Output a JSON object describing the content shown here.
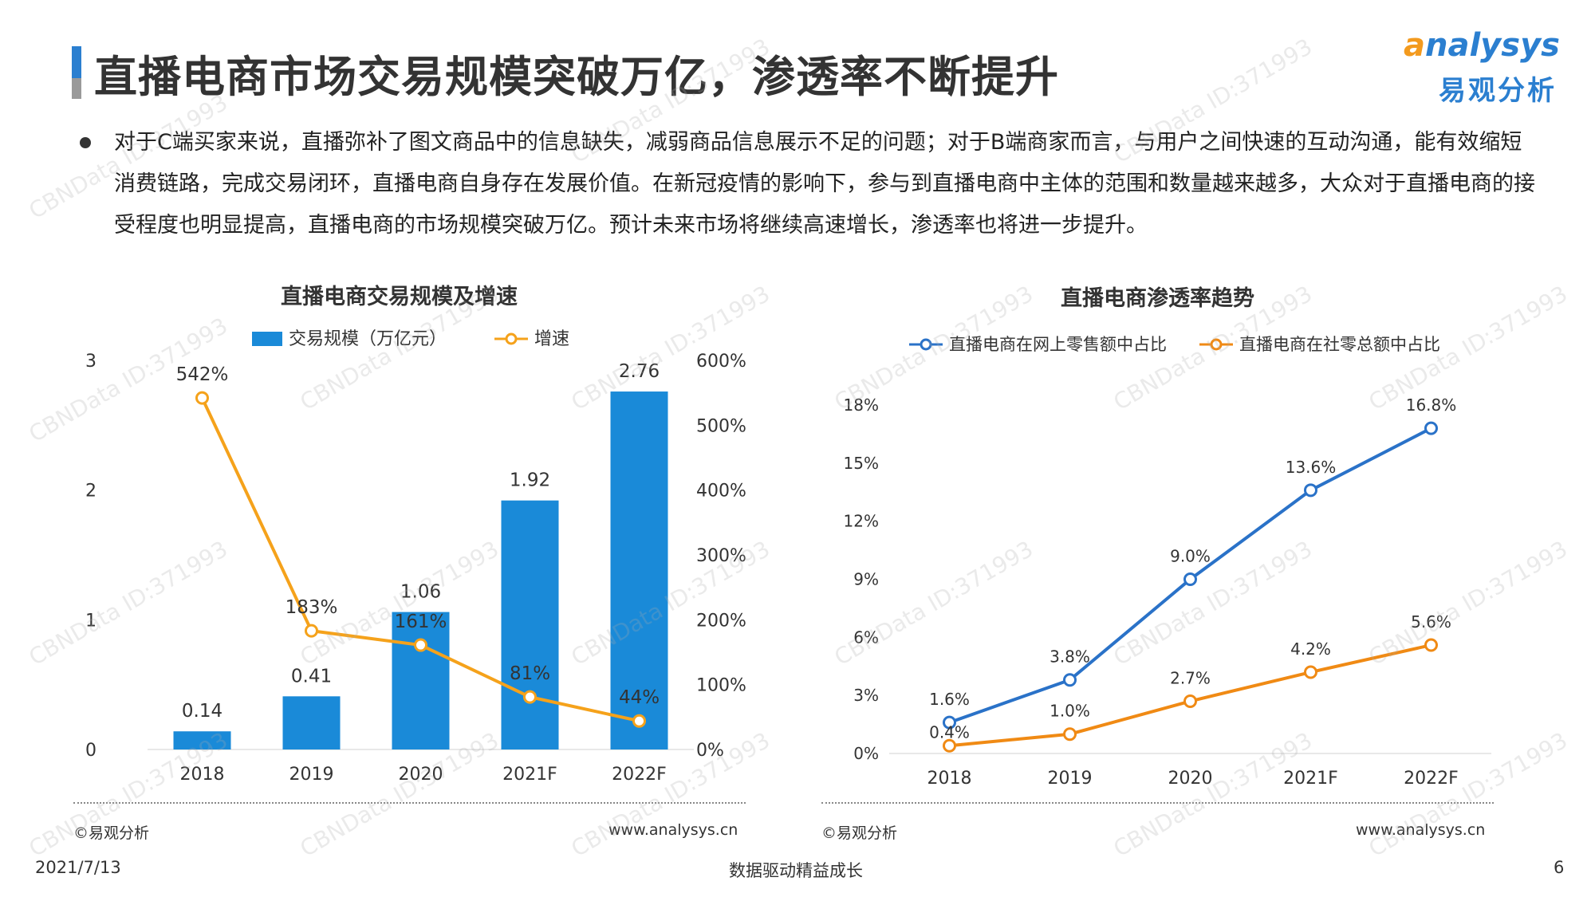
{
  "header": {
    "title": "直播电商市场交易规模突破万亿，渗透率不断提升",
    "logo_en_prefix": "a",
    "logo_en_rest": "nalysys",
    "logo_cn": "易观分析"
  },
  "bullet": {
    "text": "对于C端买家来说，直播弥补了图文商品中的信息缺失，减弱商品信息展示不足的问题；对于B端商家而言，与用户之间快速的互动沟通，能有效缩短消费链路，完成交易闭环，直播电商自身存在发展价值。在新冠疫情的影响下，参与到直播电商中主体的范围和数量越来越多，大众对于直播电商的接受程度也明显提高，直播电商的市场规模突破万亿。预计未来市场将继续高速增长，渗透率也将进一步提升。"
  },
  "chart_data": [
    {
      "type": "bar",
      "title": "直播电商交易规模及增速",
      "categories": [
        "2018",
        "2019",
        "2020",
        "2021F",
        "2022F"
      ],
      "series": [
        {
          "name": "交易规模（万亿元）",
          "type": "bar",
          "axis": "left",
          "values": [
            0.14,
            0.41,
            1.06,
            1.92,
            2.76
          ],
          "labels": [
            "0.14",
            "0.41",
            "1.06",
            "1.92",
            "2.76"
          ],
          "color": "#1a8ad8"
        },
        {
          "name": "增速",
          "type": "line",
          "axis": "right",
          "values": [
            542,
            183,
            161,
            81,
            44
          ],
          "labels": [
            "542%",
            "183%",
            "161%",
            "81%",
            "44%"
          ],
          "color": "#f5a21b"
        }
      ],
      "ylim_left": [
        0,
        3
      ],
      "yticks_left": [
        "0",
        "1",
        "2",
        "3"
      ],
      "ylim_right": [
        0,
        600
      ],
      "yticks_right": [
        "0%",
        "100%",
        "200%",
        "300%",
        "400%",
        "500%",
        "600%"
      ],
      "grid": false,
      "legend": "top-center",
      "source": "©易观分析",
      "url": "www.analysys.cn"
    },
    {
      "type": "line",
      "title": "直播电商渗透率趋势",
      "x": [
        "2018",
        "2019",
        "2020",
        "2021F",
        "2022F"
      ],
      "series": [
        {
          "name": "直播电商在网上零售额中占比",
          "values": [
            1.6,
            3.8,
            9.0,
            13.6,
            16.8
          ],
          "labels": [
            "1.6%",
            "3.8%",
            "9.0%",
            "13.6%",
            "16.8%"
          ],
          "color": "#2a72c8"
        },
        {
          "name": "直播电商在社零总额中占比",
          "values": [
            0.4,
            1.0,
            2.7,
            4.2,
            5.6
          ],
          "labels": [
            "0.4%",
            "1.0%",
            "2.7%",
            "4.2%",
            "5.6%"
          ],
          "color": "#f08a14"
        }
      ],
      "ylim": [
        0,
        18
      ],
      "yticks": [
        "0%",
        "3%",
        "6%",
        "9%",
        "12%",
        "15%",
        "18%"
      ],
      "grid": false,
      "legend": "top-center",
      "source": "©易观分析",
      "url": "www.analysys.cn"
    }
  ],
  "footer": {
    "date": "2021/7/13",
    "slogan": "数据驱动精益成长",
    "page": "6"
  },
  "watermark": "CBNData ID:371993"
}
